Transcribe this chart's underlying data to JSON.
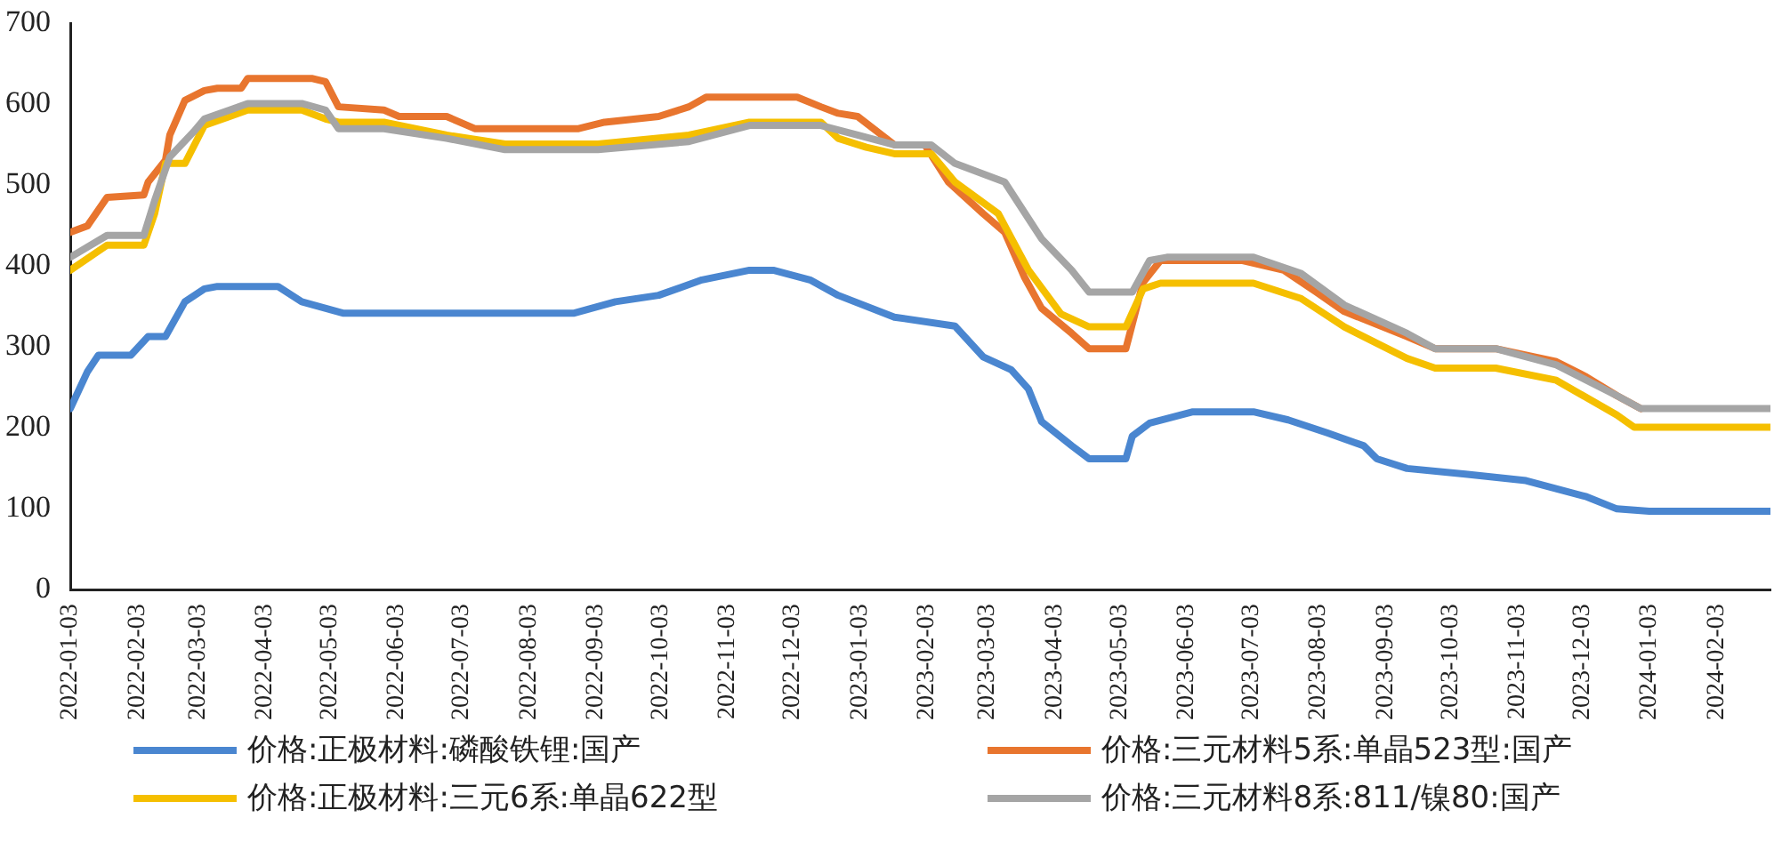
{
  "chart_data": {
    "type": "line",
    "xlim": [
      "2022-01-03",
      "2024-02-28"
    ],
    "xticks": [
      "2022-01-03",
      "2022-02-03",
      "2022-03-03",
      "2022-04-03",
      "2022-05-03",
      "2022-06-03",
      "2022-07-03",
      "2022-08-03",
      "2022-09-03",
      "2022-10-03",
      "2022-11-03",
      "2022-12-03",
      "2023-01-03",
      "2023-02-03",
      "2023-03-03",
      "2023-04-03",
      "2023-05-03",
      "2023-06-03",
      "2023-07-03",
      "2023-08-03",
      "2023-09-03",
      "2023-10-03",
      "2023-11-03",
      "2023-12-03",
      "2024-01-03",
      "2024-02-03"
    ],
    "ylim": [
      0,
      700
    ],
    "yticks": [
      0,
      100,
      200,
      300,
      400,
      500,
      600,
      700
    ],
    "grid": false,
    "legend": "bottom",
    "marker": "none",
    "line_style": "solid",
    "series": [
      {
        "name": "价格:正极材料:磷酸铁锂:国产",
        "color": "#4a86d0",
        "x": [
          "2022-01-03",
          "2022-01-11",
          "2022-01-16",
          "2022-01-31",
          "2022-02-08",
          "2022-02-16",
          "2022-02-25",
          "2022-03-06",
          "2022-03-12",
          "2022-04-09",
          "2022-04-20",
          "2022-05-09",
          "2022-08-24",
          "2022-09-12",
          "2022-10-02",
          "2022-10-22",
          "2022-11-13",
          "2022-11-24",
          "2022-12-11",
          "2022-12-24",
          "2023-01-19",
          "2023-02-16",
          "2023-03-01",
          "2023-03-14",
          "2023-03-22",
          "2023-03-28",
          "2023-04-11",
          "2023-04-19",
          "2023-05-06",
          "2023-05-09",
          "2023-05-17",
          "2023-06-06",
          "2023-07-04",
          "2023-07-20",
          "2023-08-07",
          "2023-08-24",
          "2023-08-30",
          "2023-09-13",
          "2023-10-10",
          "2023-11-07",
          "2023-12-05",
          "2023-12-19",
          "2024-01-03",
          "2024-02-28"
        ],
        "values": [
          224,
          270,
          290,
          290,
          313,
          313,
          356,
          372,
          375,
          375,
          356,
          342,
          342,
          356,
          364,
          383,
          395,
          395,
          383,
          364,
          337,
          326,
          288,
          272,
          248,
          208,
          178,
          162,
          162,
          190,
          206,
          220,
          220,
          210,
          194,
          178,
          162,
          150,
          143,
          135,
          115,
          100,
          97,
          97
        ]
      },
      {
        "name": "价格:三元材料5系:单晶523型:国产",
        "color": "#e8752e",
        "x": [
          "2022-01-03",
          "2022-01-11",
          "2022-01-20",
          "2022-02-06",
          "2022-02-08",
          "2022-02-16",
          "2022-02-18",
          "2022-02-25",
          "2022-03-06",
          "2022-03-12",
          "2022-03-23",
          "2022-03-26",
          "2022-04-25",
          "2022-05-01",
          "2022-05-07",
          "2022-05-28",
          "2022-06-04",
          "2022-06-26",
          "2022-07-09",
          "2022-08-26",
          "2022-09-07",
          "2022-10-02",
          "2022-10-16",
          "2022-10-24",
          "2022-12-05",
          "2022-12-16",
          "2022-12-24",
          "2023-01-02",
          "2023-01-19",
          "2023-02-02",
          "2023-02-13",
          "2023-03-01",
          "2023-03-11",
          "2023-03-20",
          "2023-03-28",
          "2023-04-11",
          "2023-04-19",
          "2023-05-06",
          "2023-05-14",
          "2023-05-22",
          "2023-06-29",
          "2023-07-18",
          "2023-08-02",
          "2023-08-15",
          "2023-09-13",
          "2023-09-26",
          "2023-10-24",
          "2023-11-21",
          "2023-12-05",
          "2023-12-19",
          "2023-12-30"
        ],
        "values": [
          442,
          450,
          485,
          488,
          504,
          531,
          562,
          605,
          617,
          620,
          620,
          632,
          632,
          628,
          597,
          593,
          585,
          585,
          570,
          570,
          578,
          585,
          597,
          609,
          609,
          597,
          589,
          585,
          550,
          550,
          504,
          465,
          442,
          387,
          348,
          317,
          298,
          298,
          380,
          407,
          407,
          395,
          368,
          344,
          313,
          298,
          298,
          282,
          263,
          240,
          224
        ]
      },
      {
        "name": "价格:正极材料:三元6系:单晶622型",
        "color": "#f5bf00",
        "x": [
          "2022-01-03",
          "2022-01-20",
          "2022-02-06",
          "2022-02-11",
          "2022-02-16",
          "2022-02-25",
          "2022-03-06",
          "2022-03-26",
          "2022-04-20",
          "2022-05-01",
          "2022-05-07",
          "2022-05-28",
          "2022-06-26",
          "2022-07-23",
          "2022-09-04",
          "2022-10-16",
          "2022-11-13",
          "2022-12-16",
          "2022-12-24",
          "2023-01-06",
          "2023-01-19",
          "2023-02-05",
          "2023-02-16",
          "2023-03-08",
          "2023-03-22",
          "2023-04-06",
          "2023-04-19",
          "2023-05-06",
          "2023-05-14",
          "2023-05-22",
          "2023-07-04",
          "2023-07-26",
          "2023-08-15",
          "2023-09-13",
          "2023-09-26",
          "2023-10-24",
          "2023-11-21",
          "2023-12-19",
          "2023-12-27",
          "2024-02-28"
        ],
        "values": [
          395,
          426,
          426,
          465,
          527,
          527,
          574,
          593,
          593,
          582,
          578,
          578,
          562,
          551,
          551,
          562,
          578,
          578,
          558,
          547,
          539,
          539,
          504,
          465,
          395,
          341,
          325,
          325,
          372,
          379,
          379,
          360,
          325,
          286,
          274,
          274,
          259,
          216,
          201,
          201
        ]
      },
      {
        "name": "价格:三元材料8系:811/镍80:国产",
        "color": "#a5a5a5",
        "x": [
          "2022-01-03",
          "2022-01-20",
          "2022-02-06",
          "2022-02-11",
          "2022-02-18",
          "2022-03-01",
          "2022-03-06",
          "2022-03-26",
          "2022-04-20",
          "2022-05-01",
          "2022-05-07",
          "2022-05-28",
          "2022-06-26",
          "2022-07-23",
          "2022-09-04",
          "2022-10-16",
          "2022-11-13",
          "2022-12-16",
          "2023-01-02",
          "2023-01-19",
          "2023-02-05",
          "2023-02-16",
          "2023-03-11",
          "2023-03-28",
          "2023-04-11",
          "2023-04-19",
          "2023-05-09",
          "2023-05-17",
          "2023-05-25",
          "2023-07-04",
          "2023-07-26",
          "2023-08-15",
          "2023-09-13",
          "2023-09-26",
          "2023-10-24",
          "2023-11-21",
          "2023-12-19",
          "2023-12-30",
          "2024-02-28"
        ],
        "values": [
          411,
          438,
          438,
          481,
          535,
          566,
          582,
          601,
          601,
          593,
          570,
          570,
          558,
          544,
          544,
          554,
          574,
          574,
          562,
          550,
          550,
          527,
          504,
          434,
          395,
          368,
          368,
          407,
          411,
          411,
          391,
          352,
          317,
          298,
          298,
          278,
          240,
          224,
          224
        ]
      }
    ]
  }
}
